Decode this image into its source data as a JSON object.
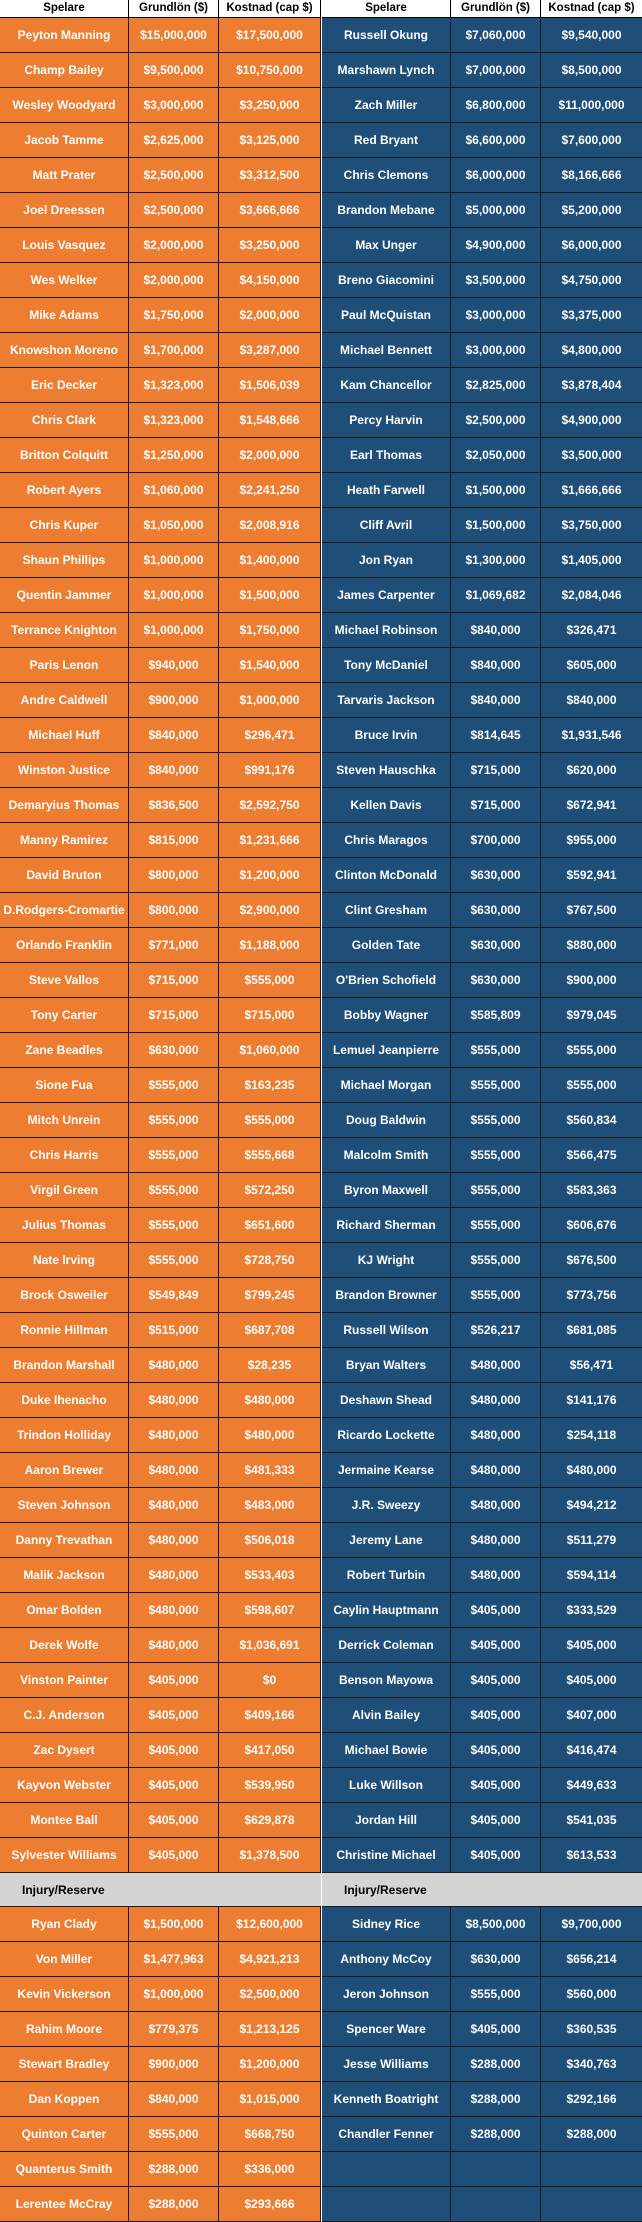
{
  "headers": {
    "player": "Spelare",
    "base": "Grundlön ($)",
    "cap": "Kostnad (cap $)"
  },
  "section_label": "Injury/Reserve",
  "left_rows": [
    [
      "Peyton Manning",
      "$15,000,000",
      "$17,500,000"
    ],
    [
      "Champ Bailey",
      "$9,500,000",
      "$10,750,000"
    ],
    [
      "Wesley Woodyard",
      "$3,000,000",
      "$3,250,000"
    ],
    [
      "Jacob Tamme",
      "$2,625,000",
      "$3,125,000"
    ],
    [
      "Matt Prater",
      "$2,500,000",
      "$3,312,500"
    ],
    [
      "Joel Dreessen",
      "$2,500,000",
      "$3,666,666"
    ],
    [
      "Louis Vasquez",
      "$2,000,000",
      "$3,250,000"
    ],
    [
      "Wes Welker",
      "$2,000,000",
      "$4,150,000"
    ],
    [
      "Mike Adams",
      "$1,750,000",
      "$2,000,000"
    ],
    [
      "Knowshon Moreno",
      "$1,700,000",
      "$3,287,000"
    ],
    [
      "Eric Decker",
      "$1,323,000",
      "$1,506,039"
    ],
    [
      "Chris Clark",
      "$1,323,000",
      "$1,548,666"
    ],
    [
      "Britton Colquitt",
      "$1,250,000",
      "$2,000,000"
    ],
    [
      "Robert Ayers",
      "$1,060,000",
      "$2,241,250"
    ],
    [
      "Chris Kuper",
      "$1,050,000",
      "$2,008,916"
    ],
    [
      "Shaun Phillips",
      "$1,000,000",
      "$1,400,000"
    ],
    [
      "Quentin Jammer",
      "$1,000,000",
      "$1,500,000"
    ],
    [
      "Terrance Knighton",
      "$1,000,000",
      "$1,750,000"
    ],
    [
      "Paris Lenon",
      "$940,000",
      "$1,540,000"
    ],
    [
      "Andre Caldwell",
      "$900,000",
      "$1,000,000"
    ],
    [
      "Michael Huff",
      "$840,000",
      "$296,471"
    ],
    [
      "Winston Justice",
      "$840,000",
      "$991,176"
    ],
    [
      "Demaryius Thomas",
      "$836,500",
      "$2,592,750"
    ],
    [
      "Manny Ramirez",
      "$815,000",
      "$1,231,666"
    ],
    [
      "David Bruton",
      "$800,000",
      "$1,200,000"
    ],
    [
      "D.Rodgers-Cromartie",
      "$800,000",
      "$2,900,000"
    ],
    [
      "Orlando Franklin",
      "$771,000",
      "$1,188,000"
    ],
    [
      "Steve Vallos",
      "$715,000",
      "$555,000"
    ],
    [
      "Tony Carter",
      "$715,000",
      "$715,000"
    ],
    [
      "Zane Beadles",
      "$630,000",
      "$1,060,000"
    ],
    [
      "Sione Fua",
      "$555,000",
      "$163,235"
    ],
    [
      "Mitch Unrein",
      "$555,000",
      "$555,000"
    ],
    [
      "Chris Harris",
      "$555,000",
      "$555,668"
    ],
    [
      "Virgil Green",
      "$555,000",
      "$572,250"
    ],
    [
      "Julius Thomas",
      "$555,000",
      "$651,600"
    ],
    [
      "Nate Irving",
      "$555,000",
      "$728,750"
    ],
    [
      "Brock Osweiler",
      "$549,849",
      "$799,245"
    ],
    [
      "Ronnie Hillman",
      "$515,000",
      "$687,708"
    ],
    [
      "Brandon Marshall",
      "$480,000",
      "$28,235"
    ],
    [
      "Duke Ihenacho",
      "$480,000",
      "$480,000"
    ],
    [
      "Trindon Holliday",
      "$480,000",
      "$480,000"
    ],
    [
      "Aaron Brewer",
      "$480,000",
      "$481,333"
    ],
    [
      "Steven Johnson",
      "$480,000",
      "$483,000"
    ],
    [
      "Danny Trevathan",
      "$480,000",
      "$506,018"
    ],
    [
      "Malik Jackson",
      "$480,000",
      "$533,403"
    ],
    [
      "Omar Bolden",
      "$480,000",
      "$598,607"
    ],
    [
      "Derek Wolfe",
      "$480,000",
      "$1,036,691"
    ],
    [
      "Vinston Painter",
      "$405,000",
      "$0"
    ],
    [
      "C.J. Anderson",
      "$405,000",
      "$409,166"
    ],
    [
      "Zac Dysert",
      "$405,000",
      "$417,050"
    ],
    [
      "Kayvon Webster",
      "$405,000",
      "$539,950"
    ],
    [
      "Montee Ball",
      "$405,000",
      "$629,878"
    ],
    [
      "Sylvester Williams",
      "$405,000",
      "$1,378,500"
    ]
  ],
  "right_rows": [
    [
      "Russell Okung",
      "$7,060,000",
      "$9,540,000"
    ],
    [
      "Marshawn Lynch",
      "$7,000,000",
      "$8,500,000"
    ],
    [
      "Zach Miller",
      "$6,800,000",
      "$11,000,000"
    ],
    [
      "Red Bryant",
      "$6,600,000",
      "$7,600,000"
    ],
    [
      "Chris Clemons",
      "$6,000,000",
      "$8,166,666"
    ],
    [
      "Brandon Mebane",
      "$5,000,000",
      "$5,200,000"
    ],
    [
      "Max Unger",
      "$4,900,000",
      "$6,000,000"
    ],
    [
      "Breno Giacomini",
      "$3,500,000",
      "$4,750,000"
    ],
    [
      "Paul McQuistan",
      "$3,000,000",
      "$3,375,000"
    ],
    [
      "Michael Bennett",
      "$3,000,000",
      "$4,800,000"
    ],
    [
      "Kam Chancellor",
      "$2,825,000",
      "$3,878,404"
    ],
    [
      "Percy Harvin",
      "$2,500,000",
      "$4,900,000"
    ],
    [
      "Earl Thomas",
      "$2,050,000",
      "$3,500,000"
    ],
    [
      "Heath Farwell",
      "$1,500,000",
      "$1,666,666"
    ],
    [
      "Cliff Avril",
      "$1,500,000",
      "$3,750,000"
    ],
    [
      "Jon Ryan",
      "$1,300,000",
      "$1,405,000"
    ],
    [
      "James Carpenter",
      "$1,069,682",
      "$2,084,046"
    ],
    [
      "Michael Robinson",
      "$840,000",
      "$326,471"
    ],
    [
      "Tony McDaniel",
      "$840,000",
      "$605,000"
    ],
    [
      "Tarvaris Jackson",
      "$840,000",
      "$840,000"
    ],
    [
      "Bruce Irvin",
      "$814,645",
      "$1,931,546"
    ],
    [
      "Steven Hauschka",
      "$715,000",
      "$620,000"
    ],
    [
      "Kellen Davis",
      "$715,000",
      "$672,941"
    ],
    [
      "Chris Maragos",
      "$700,000",
      "$955,000"
    ],
    [
      "Clinton McDonald",
      "$630,000",
      "$592,941"
    ],
    [
      "Clint Gresham",
      "$630,000",
      "$767,500"
    ],
    [
      "Golden Tate",
      "$630,000",
      "$880,000"
    ],
    [
      "O'Brien Schofield",
      "$630,000",
      "$900,000"
    ],
    [
      "Bobby Wagner",
      "$585,809",
      "$979,045"
    ],
    [
      "Lemuel Jeanpierre",
      "$555,000",
      "$555,000"
    ],
    [
      "Michael Morgan",
      "$555,000",
      "$555,000"
    ],
    [
      "Doug Baldwin",
      "$555,000",
      "$560,834"
    ],
    [
      "Malcolm Smith",
      "$555,000",
      "$566,475"
    ],
    [
      "Byron Maxwell",
      "$555,000",
      "$583,363"
    ],
    [
      "Richard Sherman",
      "$555,000",
      "$606,676"
    ],
    [
      "KJ Wright",
      "$555,000",
      "$676,500"
    ],
    [
      "Brandon Browner",
      "$555,000",
      "$773,756"
    ],
    [
      "Russell Wilson",
      "$526,217",
      "$681,085"
    ],
    [
      "Bryan Walters",
      "$480,000",
      "$56,471"
    ],
    [
      "Deshawn Shead",
      "$480,000",
      "$141,176"
    ],
    [
      "Ricardo Lockette",
      "$480,000",
      "$254,118"
    ],
    [
      "Jermaine Kearse",
      "$480,000",
      "$480,000"
    ],
    [
      "J.R. Sweezy",
      "$480,000",
      "$494,212"
    ],
    [
      "Jeremy Lane",
      "$480,000",
      "$511,279"
    ],
    [
      "Robert Turbin",
      "$480,000",
      "$594,114"
    ],
    [
      "Caylin Hauptmann",
      "$405,000",
      "$333,529"
    ],
    [
      "Derrick Coleman",
      "$405,000",
      "$405,000"
    ],
    [
      "Benson Mayowa",
      "$405,000",
      "$405,000"
    ],
    [
      "Alvin Bailey",
      "$405,000",
      "$407,000"
    ],
    [
      "Michael Bowie",
      "$405,000",
      "$416,474"
    ],
    [
      "Luke Willson",
      "$405,000",
      "$449,633"
    ],
    [
      "Jordan Hill",
      "$405,000",
      "$541,035"
    ],
    [
      "Christine Michael",
      "$405,000",
      "$613,533"
    ]
  ],
  "left_ir": [
    [
      "Ryan Clady",
      "$1,500,000",
      "$12,600,000"
    ],
    [
      "Von Miller",
      "$1,477,963",
      "$4,921,213"
    ],
    [
      "Kevin Vickerson",
      "$1,000,000",
      "$2,500,000"
    ],
    [
      "Rahim Moore",
      "$779,375",
      "$1,213,125"
    ],
    [
      "Stewart Bradley",
      "$900,000",
      "$1,200,000"
    ],
    [
      "Dan Koppen",
      "$840,000",
      "$1,015,000"
    ],
    [
      "Quinton Carter",
      "$555,000",
      "$668,750"
    ],
    [
      "Quanterus Smith",
      "$288,000",
      "$336,000"
    ],
    [
      "Lerentee McCray",
      "$288,000",
      "$293,666"
    ]
  ],
  "right_ir": [
    [
      "Sidney Rice",
      "$8,500,000",
      "$9,700,000"
    ],
    [
      "Anthony McCoy",
      "$630,000",
      "$656,214"
    ],
    [
      "Jeron Johnson",
      "$555,000",
      "$560,000"
    ],
    [
      "Spencer Ware",
      "$405,000",
      "$360,535"
    ],
    [
      "Jesse Williams",
      "$288,000",
      "$340,763"
    ],
    [
      "Kenneth Boatright",
      "$288,000",
      "$292,166"
    ],
    [
      "Chandler Fenner",
      "$288,000",
      "$288,000"
    ],
    [
      "",
      "",
      ""
    ],
    [
      "",
      "",
      ""
    ]
  ]
}
